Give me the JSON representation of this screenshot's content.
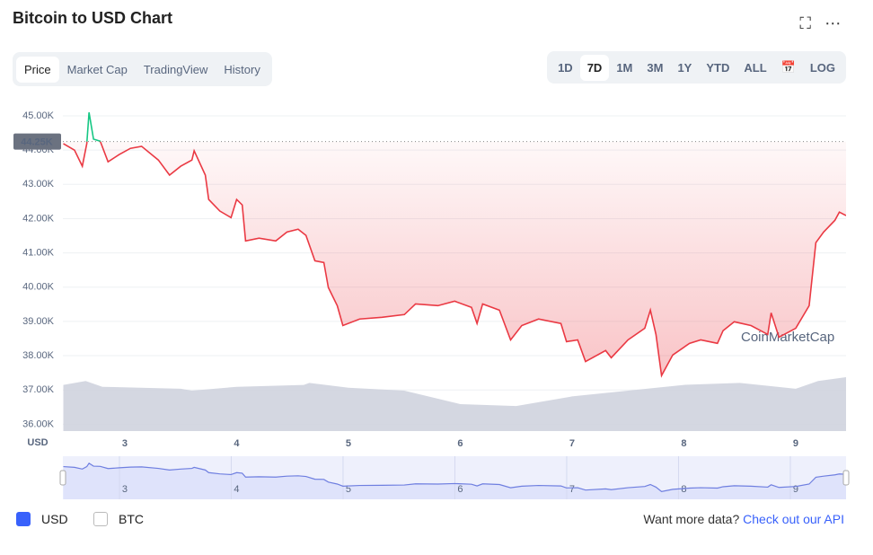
{
  "header": {
    "title": "Bitcoin to USD Chart"
  },
  "tabs": [
    "Price",
    "Market Cap",
    "TradingView",
    "History"
  ],
  "active_tab": 0,
  "ranges": [
    "1D",
    "7D",
    "1M",
    "3M",
    "1Y",
    "YTD",
    "ALL"
  ],
  "active_range": 1,
  "log_button": "LOG",
  "watermark": "CoinMarketCap",
  "currencies": [
    {
      "label": "USD",
      "checked": true
    },
    {
      "label": "BTC",
      "checked": false
    }
  ],
  "footer": {
    "prompt": "Want more data?",
    "link": "Check out our API"
  },
  "chart_data": {
    "type": "line",
    "ylabel": "USD",
    "x": [
      2.45,
      2.55,
      2.62,
      2.66,
      2.68,
      2.72,
      2.78,
      2.85,
      2.95,
      3.05,
      3.15,
      3.3,
      3.4,
      3.5,
      3.6,
      3.62,
      3.72,
      3.75,
      3.85,
      3.95,
      4.0,
      4.05,
      4.08,
      4.2,
      4.35,
      4.45,
      4.55,
      4.62,
      4.7,
      4.78,
      4.82,
      4.9,
      4.95,
      5.1,
      5.3,
      5.5,
      5.6,
      5.8,
      5.95,
      6.1,
      6.15,
      6.2,
      6.35,
      6.45,
      6.55,
      6.7,
      6.9,
      6.95,
      7.05,
      7.12,
      7.3,
      7.35,
      7.5,
      7.65,
      7.7,
      7.75,
      7.8,
      7.9,
      8.05,
      8.15,
      8.3,
      8.35,
      8.45,
      8.6,
      8.75,
      8.78,
      8.85,
      9.0,
      9.12,
      9.18,
      9.25,
      9.35,
      9.39,
      9.45
    ],
    "series": [
      {
        "name": "Price",
        "color": "#ea3943",
        "up_color": "#16c784",
        "values": [
          44190,
          44000,
          43530,
          44190,
          45100,
          44320,
          44260,
          43660,
          43870,
          44050,
          44110,
          43710,
          43270,
          43530,
          43710,
          43980,
          43270,
          42560,
          42220,
          42030,
          42560,
          42400,
          41350,
          41430,
          41350,
          41610,
          41690,
          41510,
          40770,
          40720,
          39990,
          39460,
          38880,
          39070,
          39120,
          39200,
          39510,
          39460,
          39590,
          39410,
          38940,
          39510,
          39330,
          38460,
          38880,
          39070,
          38940,
          38410,
          38460,
          37830,
          38150,
          37940,
          38460,
          38800,
          39330,
          38620,
          37420,
          38020,
          38360,
          38460,
          38360,
          38730,
          38990,
          38880,
          38620,
          39250,
          38540,
          38800,
          39460,
          41300,
          41610,
          41950,
          42190,
          42090
        ]
      }
    ],
    "reference": {
      "value": 44250,
      "label": "44.25K"
    },
    "volume": {
      "x": [
        2.45,
        2.65,
        2.8,
        3.5,
        3.6,
        4.0,
        4.6,
        4.65,
        5.0,
        5.5,
        6.0,
        6.5,
        7.0,
        7.5,
        8.0,
        8.5,
        9.0,
        9.2,
        9.45
      ],
      "values": [
        48,
        52,
        46,
        44,
        42,
        46,
        48,
        50,
        45,
        42,
        28,
        26,
        36,
        42,
        48,
        50,
        44,
        52,
        56
      ],
      "color": "#cfd3de"
    },
    "xlim": [
      2.446,
      9.45
    ],
    "xticks": [
      3,
      4,
      5,
      6,
      7,
      8,
      9
    ],
    "ylim": [
      35800,
      45550
    ],
    "yticks": [
      {
        "value": 36000,
        "label": "36.00K"
      },
      {
        "value": 37000,
        "label": "37.00K"
      },
      {
        "value": 38000,
        "label": "38.00K"
      },
      {
        "value": 39000,
        "label": "39.00K"
      },
      {
        "value": 40000,
        "label": "40.00K"
      },
      {
        "value": 41000,
        "label": "41.00K"
      },
      {
        "value": 42000,
        "label": "42.00K"
      },
      {
        "value": 43000,
        "label": "43.00K"
      },
      {
        "value": 44000,
        "label": "44.00K"
      },
      {
        "value": 45000,
        "label": "45.00K"
      }
    ],
    "grid": true
  }
}
